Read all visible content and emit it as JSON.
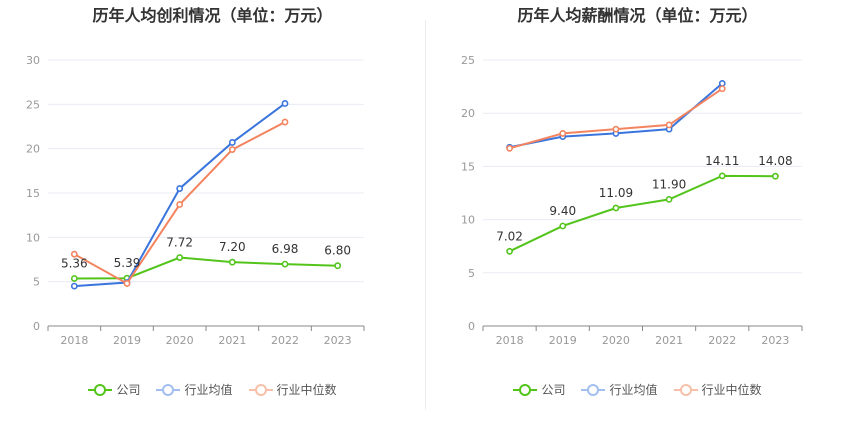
{
  "chart_data": [
    {
      "type": "line",
      "title": "历年人均创利情况（单位：万元）",
      "categories": [
        "2018",
        "2019",
        "2020",
        "2021",
        "2022",
        "2023"
      ],
      "ylim": [
        0,
        30
      ],
      "yticks": [
        0,
        5,
        10,
        15,
        20,
        25,
        30
      ],
      "grid": true,
      "legend_position": "bottom",
      "series": [
        {
          "name": "公司",
          "color": "#52c41a",
          "values": [
            5.36,
            5.39,
            7.72,
            7.2,
            6.98,
            6.8
          ],
          "labels": [
            "5.36",
            "5.39",
            "7.72",
            "7.20",
            "6.98",
            "6.80"
          ]
        },
        {
          "name": "行业均值",
          "color": "#3a75dd",
          "values": [
            4.5,
            4.9,
            15.5,
            20.7,
            25.1,
            null
          ],
          "labels": []
        },
        {
          "name": "行业中位数",
          "color": "#f4845f",
          "values": [
            8.1,
            4.8,
            13.7,
            19.9,
            23.0,
            null
          ],
          "labels": []
        }
      ]
    },
    {
      "type": "line",
      "title": "历年人均薪酬情况（单位：万元）",
      "categories": [
        "2018",
        "2019",
        "2020",
        "2021",
        "2022",
        "2023"
      ],
      "ylim": [
        0,
        25
      ],
      "yticks": [
        0,
        5,
        10,
        15,
        20,
        25
      ],
      "grid": true,
      "legend_position": "bottom",
      "series": [
        {
          "name": "公司",
          "color": "#52c41a",
          "values": [
            7.02,
            9.4,
            11.09,
            11.9,
            14.11,
            14.08
          ],
          "labels": [
            "7.02",
            "9.40",
            "11.09",
            "11.90",
            "14.11",
            "14.08"
          ]
        },
        {
          "name": "行业均值",
          "color": "#3a75dd",
          "values": [
            16.8,
            17.8,
            18.1,
            18.5,
            22.8,
            null
          ],
          "labels": []
        },
        {
          "name": "行业中位数",
          "color": "#f4845f",
          "values": [
            16.7,
            18.1,
            18.5,
            18.9,
            22.3,
            null
          ],
          "labels": []
        }
      ]
    }
  ]
}
